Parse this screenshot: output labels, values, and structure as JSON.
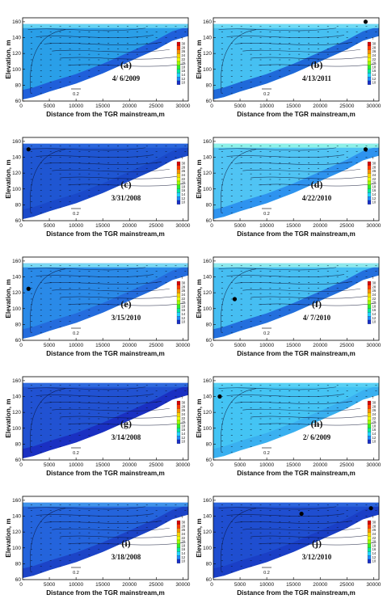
{
  "chart_data": {
    "type": "contour-section",
    "xlabel": "Distance from the TGR mainstream,m",
    "ylabel": "Elevation, m",
    "x_ticks": [
      "5000",
      "10000",
      "15000",
      "20000",
      "25000",
      "30000"
    ],
    "y_ticks": [
      "60",
      "80",
      "100",
      "120",
      "140",
      "160"
    ],
    "xlim": [
      0,
      31000
    ],
    "ylim": [
      60,
      165
    ],
    "legend_title": "T",
    "legend_levels": [
      "30",
      "28",
      "26",
      "24",
      "22",
      "20",
      "18",
      "16",
      "14",
      "12",
      "10"
    ],
    "legend_colors": [
      "#d90000",
      "#ff3a00",
      "#ff8c00",
      "#ffd200",
      "#eeff00",
      "#9cff00",
      "#2ef028",
      "#00e8a0",
      "#1ed8ff",
      "#1e8cff",
      "#1730c8"
    ],
    "reference_vector": "0.2",
    "panels": [
      {
        "label": "(a)",
        "date": "4/ 6/2009",
        "fill": "#2a9fe8",
        "surface_fill": "#66d2f2",
        "bottom_fill": "#1e58d8",
        "dots": []
      },
      {
        "label": "(b)",
        "date": "4/13/2011",
        "fill": "#46c0f2",
        "surface_fill": "#6fdaf4",
        "bottom_fill": "#1b5fd6",
        "dots": [
          [
            28500,
            160
          ]
        ]
      },
      {
        "label": "(c)",
        "date": "3/31/2008",
        "fill": "#1f56d2",
        "surface_fill": "#2a66dc",
        "bottom_fill": "#1a48c8",
        "dots": [
          [
            1100,
            150
          ]
        ]
      },
      {
        "label": "(d)",
        "date": "4/22/2010",
        "fill": "#50c4f4",
        "surface_fill": "#8ef0e8",
        "bottom_fill": "#2a8eee",
        "dots": [
          [
            28500,
            150
          ]
        ]
      },
      {
        "label": "(e)",
        "date": "3/15/2010",
        "fill": "#2a8ae8",
        "surface_fill": "#7ad8f2",
        "bottom_fill": "#2468dc",
        "dots": [
          [
            1100,
            125
          ]
        ]
      },
      {
        "label": "(f)",
        "date": "4/ 7/2010",
        "fill": "#46bef2",
        "surface_fill": "#8ee8ec",
        "bottom_fill": "#1f66da",
        "dots": [
          [
            4000,
            112
          ]
        ]
      },
      {
        "label": "(g)",
        "date": "3/14/2008",
        "fill": "#2152d2",
        "surface_fill": "#2f6ade",
        "bottom_fill": "#1a2cc0",
        "dots": []
      },
      {
        "label": "(h)",
        "date": "2/ 6/2009",
        "fill": "#44c4f4",
        "surface_fill": "#58d0f4",
        "bottom_fill": "#3aaef0",
        "dots": [
          [
            1200,
            140
          ]
        ]
      },
      {
        "label": "(i)",
        "date": "3/18/2008",
        "fill": "#2464dc",
        "surface_fill": "#3f92ea",
        "bottom_fill": "#1c40c4",
        "dots": []
      },
      {
        "label": "(j)",
        "date": "3/12/2010",
        "fill": "#1f4ed0",
        "surface_fill": "#2b64dc",
        "bottom_fill": "#1a3ec4",
        "dots": [
          [
            16500,
            143
          ],
          [
            29500,
            150
          ]
        ]
      }
    ]
  }
}
